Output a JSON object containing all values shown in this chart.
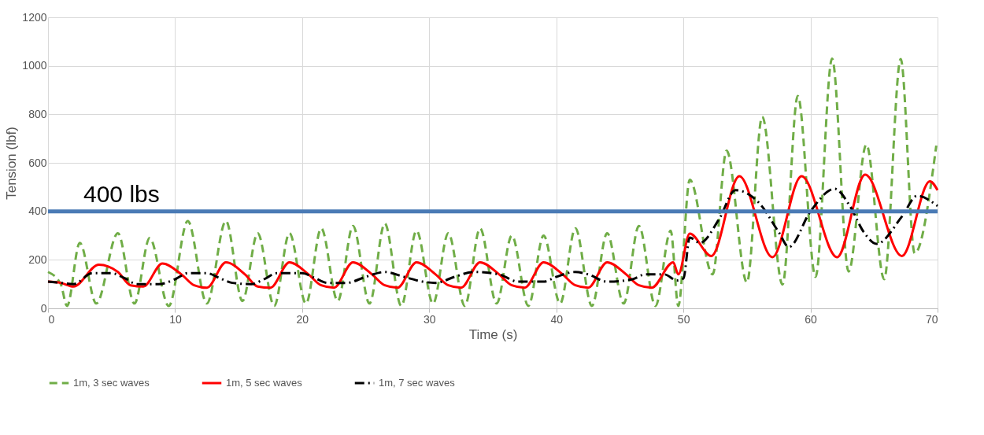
{
  "chart_data": {
    "type": "line",
    "xlabel": "Time (s)",
    "ylabel": "Tension (lbf)",
    "xlim": [
      0,
      70
    ],
    "xticks": [
      0,
      10,
      20,
      30,
      40,
      50,
      60,
      70
    ],
    "ylim": [
      0,
      1200
    ],
    "yticks": [
      0,
      200,
      400,
      600,
      800,
      1000,
      1200
    ],
    "grid": true,
    "legend": "bottom",
    "ref_lines": [
      {
        "axis": "y",
        "value": 400,
        "label": "400 lbs",
        "color": "#4a7ab5"
      }
    ],
    "series": [
      {
        "name": "1m, 3 sec waves",
        "color": "#70ad47",
        "line_style": "dashed",
        "x": [
          0,
          1,
          1.5,
          2.5,
          3.8,
          5.5,
          6.8,
          8,
          9.5,
          11,
          12.5,
          14,
          15.3,
          16.5,
          17.8,
          19,
          20.3,
          21.5,
          22.8,
          24,
          25.3,
          26.5,
          27.8,
          29,
          30.3,
          31.5,
          32.8,
          34,
          35.3,
          36.5,
          37.8,
          39,
          40.3,
          41.5,
          42.8,
          44,
          45.3,
          46.5,
          47.8,
          49,
          49.6,
          50.5,
          52.3,
          53.4,
          55,
          56.2,
          57.8,
          59,
          60.4,
          61.7,
          63,
          64.4,
          65.8,
          67.1,
          68.2,
          69.9
        ],
        "values": [
          150,
          100,
          10,
          270,
          20,
          310,
          20,
          290,
          10,
          360,
          20,
          360,
          30,
          310,
          10,
          310,
          20,
          330,
          30,
          340,
          20,
          350,
          10,
          320,
          20,
          310,
          10,
          330,
          20,
          300,
          10,
          300,
          20,
          330,
          10,
          310,
          20,
          340,
          10,
          320,
          10,
          530,
          140,
          650,
          107,
          790,
          98,
          876,
          130,
          1030,
          152,
          675,
          120,
          1028,
          227,
          671
        ]
      },
      {
        "name": "1m, 5 sec waves",
        "color": "#ff0000",
        "line_style": "solid",
        "x": [
          0,
          1,
          2,
          4,
          5.5,
          6.5,
          7.5,
          9,
          10.5,
          11.5,
          12.5,
          14,
          15.5,
          16.5,
          17.5,
          19,
          20.5,
          21.5,
          22.5,
          24,
          25.5,
          26.5,
          27.5,
          29,
          30.5,
          31.5,
          32.5,
          34,
          35.5,
          36.5,
          37.5,
          39,
          40.5,
          41.5,
          42.5,
          44,
          45.5,
          46.5,
          47.5,
          49.2,
          49.6,
          50.5,
          52.2,
          54.4,
          57,
          59.3,
          62.1,
          64.3,
          67.2,
          69.4,
          70
        ],
        "values": [
          110,
          105,
          90,
          180,
          150,
          95,
          90,
          185,
          140,
          95,
          85,
          190,
          140,
          90,
          85,
          190,
          140,
          95,
          85,
          190,
          140,
          95,
          85,
          190,
          140,
          95,
          85,
          190,
          140,
          95,
          85,
          190,
          140,
          95,
          85,
          190,
          140,
          95,
          85,
          190,
          140,
          308,
          216,
          545,
          211,
          545,
          211,
          551,
          216,
          524,
          487
        ]
      },
      {
        "name": "1m, 7 sec waves",
        "color": "#000000",
        "line_style": "dashdot",
        "x": [
          0,
          1,
          2,
          3.5,
          5,
          6,
          7,
          8.7,
          10,
          11,
          12.5,
          13.5,
          14.5,
          16,
          17,
          18,
          20,
          21,
          22,
          23.5,
          25,
          26.5,
          28,
          29.5,
          30.5,
          32,
          33.5,
          35.5,
          37,
          39,
          40,
          41.5,
          42.5,
          44,
          46,
          47,
          48.5,
          49.5,
          50,
          50.5,
          51.3,
          52.8,
          54.1,
          56,
          57.5,
          58.3,
          60,
          61.9,
          63.1,
          64.2,
          65.2,
          67.2,
          68.4,
          70
        ],
        "values": [
          110,
          105,
          100,
          145,
          145,
          125,
          100,
          100,
          120,
          145,
          145,
          125,
          105,
          100,
          120,
          145,
          145,
          125,
          105,
          105,
          130,
          150,
          130,
          110,
          105,
          130,
          150,
          140,
          110,
          110,
          130,
          150,
          140,
          110,
          120,
          140,
          140,
          115,
          123,
          292,
          270,
          367,
          487,
          432,
          314,
          253,
          400,
          493,
          422,
          314,
          266,
          379,
          464,
          422
        ]
      }
    ]
  }
}
